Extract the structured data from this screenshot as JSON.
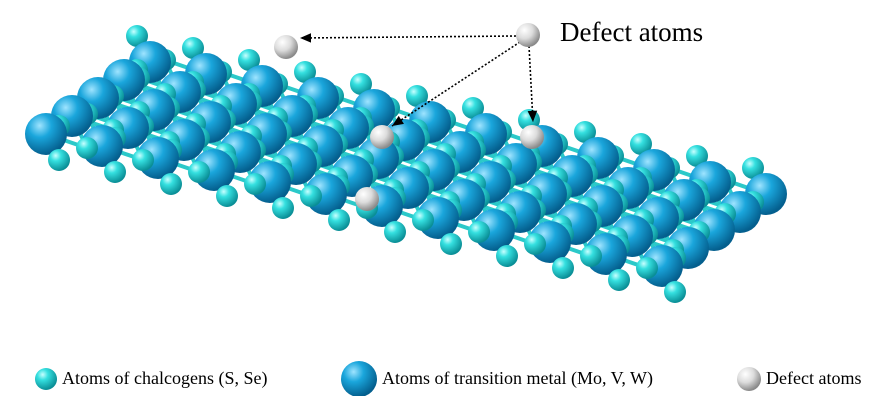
{
  "annotation": {
    "label": "Defect atoms"
  },
  "legend": [
    {
      "label": "Atoms of chalcogens (S, Se)"
    },
    {
      "label": "Atoms of transition metal (Mo, V, W)"
    },
    {
      "label": "Defect atoms"
    }
  ]
}
